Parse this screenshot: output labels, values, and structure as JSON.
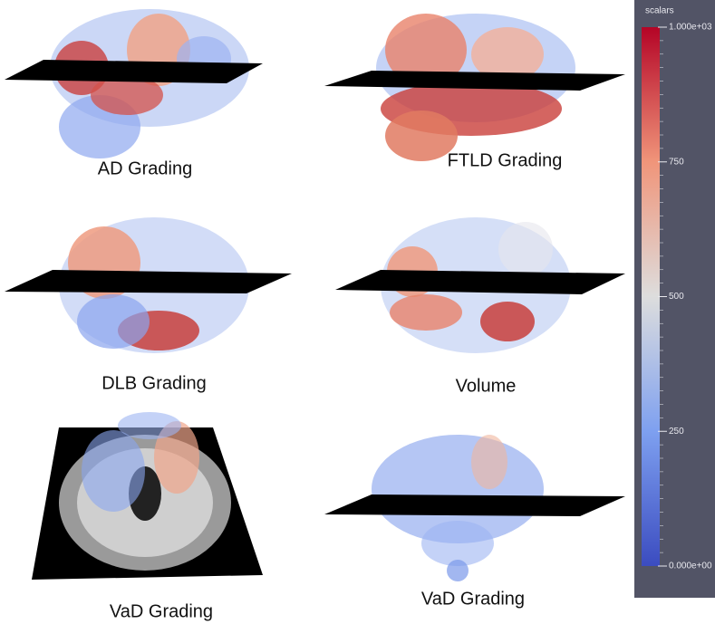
{
  "panels": [
    {
      "label": "AD Grading"
    },
    {
      "label": "FTLD Grading"
    },
    {
      "label": "DLB Grading"
    },
    {
      "label": "Volume"
    },
    {
      "label": "VaD Grading"
    },
    {
      "label": "VaD Grading"
    }
  ],
  "colorbar": {
    "title": "scalars",
    "range": [
      0,
      1000
    ],
    "ticks": [
      {
        "value": 1000,
        "label": "1.000e+03"
      },
      750,
      500,
      250,
      {
        "value": 0,
        "label": "0.000e+00"
      }
    ]
  }
}
